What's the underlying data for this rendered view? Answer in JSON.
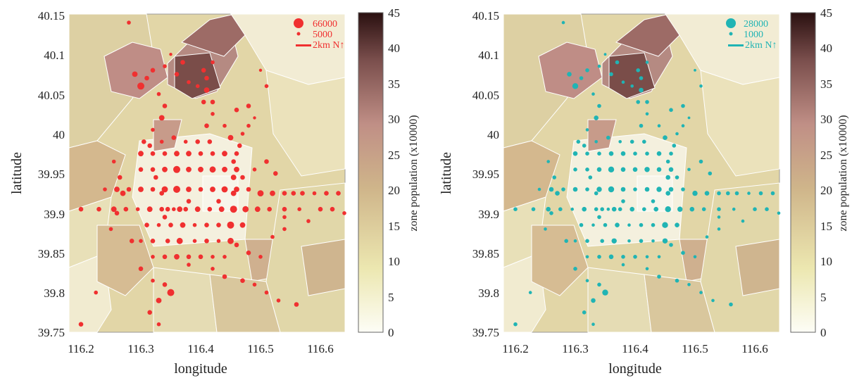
{
  "chart_data": [
    {
      "type": "scatter",
      "xlabel": "longitude",
      "ylabel": "latitude",
      "xlim": [
        116.2,
        116.65
      ],
      "ylim": [
        39.75,
        40.15
      ],
      "x_ticks": [
        "116.2",
        "116.3",
        "116.4",
        "116.5",
        "116.6"
      ],
      "y_ticks": [
        "39.75",
        "39.8",
        "39.85",
        "39.9",
        "39.95",
        "40",
        "40.05",
        "40.1",
        "40.15"
      ],
      "color": "#f03030",
      "legend": {
        "large": "66000",
        "small": "5000",
        "scale": "2km N↑"
      },
      "colorbar": {
        "label": "zone population (x10000)",
        "ticks": [
          "0",
          "5",
          "10",
          "15",
          "20",
          "25",
          "30",
          "35",
          "40",
          "45"
        ]
      }
    },
    {
      "type": "scatter",
      "xlabel": "longitude",
      "ylabel": "latitude",
      "xlim": [
        116.2,
        116.65
      ],
      "ylim": [
        39.75,
        40.15
      ],
      "x_ticks": [
        "116.2",
        "116.3",
        "116.4",
        "116.5",
        "116.6"
      ],
      "y_ticks": [
        "39.75",
        "39.8",
        "39.85",
        "39.9",
        "39.95",
        "40",
        "40.05",
        "40.1",
        "40.15"
      ],
      "color": "#20b4b4",
      "legend": {
        "large": "28000",
        "small": "1000",
        "scale": "2km N↑"
      },
      "colorbar": {
        "label": "zone population (x10000)",
        "ticks": [
          "0",
          "5",
          "10",
          "15",
          "20",
          "25",
          "30",
          "35",
          "40",
          "45"
        ]
      }
    }
  ],
  "points": [
    [
      116.2,
      39.905,
      6
    ],
    [
      116.23,
      39.905,
      6
    ],
    [
      116.255,
      39.905,
      7
    ],
    [
      116.275,
      39.905,
      6
    ],
    [
      116.295,
      39.905,
      5
    ],
    [
      116.315,
      39.905,
      7
    ],
    [
      116.335,
      39.905,
      6
    ],
    [
      116.355,
      39.905,
      5
    ],
    [
      116.375,
      39.905,
      6
    ],
    [
      116.395,
      39.905,
      7
    ],
    [
      116.415,
      39.905,
      6
    ],
    [
      116.435,
      39.905,
      7
    ],
    [
      116.455,
      39.905,
      9
    ],
    [
      116.475,
      39.905,
      8
    ],
    [
      116.495,
      39.905,
      7
    ],
    [
      116.515,
      39.905,
      6
    ],
    [
      116.54,
      39.905,
      6
    ],
    [
      116.565,
      39.905,
      5
    ],
    [
      116.26,
      39.93,
      7
    ],
    [
      116.28,
      39.93,
      6
    ],
    [
      116.3,
      39.93,
      7
    ],
    [
      116.32,
      39.93,
      6
    ],
    [
      116.34,
      39.93,
      8
    ],
    [
      116.36,
      39.93,
      9
    ],
    [
      116.38,
      39.93,
      7
    ],
    [
      116.4,
      39.93,
      6
    ],
    [
      116.42,
      39.93,
      7
    ],
    [
      116.44,
      39.93,
      8
    ],
    [
      116.46,
      39.93,
      7
    ],
    [
      116.48,
      39.93,
      6
    ],
    [
      116.5,
      39.925,
      8
    ],
    [
      116.52,
      39.925,
      7
    ],
    [
      116.54,
      39.925,
      6
    ],
    [
      116.555,
      39.925,
      6
    ],
    [
      116.57,
      39.925,
      6
    ],
    [
      116.59,
      39.925,
      5
    ],
    [
      116.61,
      39.925,
      6
    ],
    [
      116.63,
      39.925,
      6
    ],
    [
      116.3,
      39.975,
      7
    ],
    [
      116.32,
      39.975,
      6
    ],
    [
      116.34,
      39.975,
      6
    ],
    [
      116.36,
      39.975,
      7
    ],
    [
      116.38,
      39.975,
      7
    ],
    [
      116.4,
      39.975,
      6
    ],
    [
      116.42,
      39.975,
      6
    ],
    [
      116.44,
      39.975,
      7
    ],
    [
      116.46,
      39.975,
      6
    ],
    [
      116.3,
      39.955,
      6
    ],
    [
      116.32,
      39.955,
      6
    ],
    [
      116.34,
      39.955,
      7
    ],
    [
      116.36,
      39.955,
      9
    ],
    [
      116.38,
      39.955,
      7
    ],
    [
      116.4,
      39.955,
      7
    ],
    [
      116.42,
      39.955,
      8
    ],
    [
      116.44,
      39.955,
      7
    ],
    [
      116.46,
      39.955,
      7
    ],
    [
      116.31,
      39.885,
      6
    ],
    [
      116.33,
      39.885,
      5
    ],
    [
      116.35,
      39.885,
      6
    ],
    [
      116.37,
      39.885,
      7
    ],
    [
      116.39,
      39.885,
      5
    ],
    [
      116.41,
      39.885,
      6
    ],
    [
      116.43,
      39.885,
      6
    ],
    [
      116.45,
      39.885,
      9
    ],
    [
      116.47,
      39.885,
      7
    ],
    [
      116.3,
      39.865,
      5
    ],
    [
      116.32,
      39.865,
      6
    ],
    [
      116.345,
      39.865,
      6
    ],
    [
      116.365,
      39.865,
      8
    ],
    [
      116.39,
      39.865,
      5
    ],
    [
      116.41,
      39.865,
      6
    ],
    [
      116.43,
      39.865,
      5
    ],
    [
      116.45,
      39.865,
      8
    ],
    [
      116.32,
      39.845,
      5
    ],
    [
      116.34,
      39.845,
      6
    ],
    [
      116.36,
      39.845,
      7
    ],
    [
      116.38,
      39.845,
      6
    ],
    [
      116.4,
      39.845,
      6
    ],
    [
      116.42,
      39.845,
      5
    ],
    [
      116.44,
      39.845,
      5
    ],
    [
      116.305,
      39.99,
      6
    ],
    [
      116.32,
      40.005,
      5
    ],
    [
      116.335,
      40.02,
      7
    ],
    [
      116.34,
      40.035,
      6
    ],
    [
      116.33,
      40.05,
      5
    ],
    [
      116.3,
      40.06,
      9
    ],
    [
      116.29,
      40.075,
      7
    ],
    [
      116.31,
      40.07,
      6
    ],
    [
      116.32,
      40.08,
      6
    ],
    [
      116.34,
      40.085,
      5
    ],
    [
      116.36,
      40.075,
      6
    ],
    [
      116.37,
      40.09,
      6
    ],
    [
      116.38,
      40.065,
      5
    ],
    [
      116.395,
      40.06,
      5
    ],
    [
      116.405,
      40.08,
      6
    ],
    [
      116.41,
      40.07,
      6
    ],
    [
      116.41,
      40.055,
      7
    ],
    [
      116.405,
      40.04,
      6
    ],
    [
      116.42,
      40.04,
      6
    ],
    [
      116.42,
      40.025,
      5
    ],
    [
      116.41,
      40.01,
      6
    ],
    [
      116.44,
      40.01,
      5
    ],
    [
      116.45,
      39.995,
      7
    ],
    [
      116.465,
      39.985,
      6
    ],
    [
      116.47,
      40.0,
      5
    ],
    [
      116.48,
      40.01,
      5
    ],
    [
      116.46,
      40.03,
      6
    ],
    [
      116.48,
      40.035,
      6
    ],
    [
      116.28,
      40.14,
      5
    ],
    [
      116.255,
      39.965,
      5
    ],
    [
      116.265,
      39.945,
      6
    ],
    [
      116.27,
      39.925,
      7
    ],
    [
      116.26,
      39.9,
      6
    ],
    [
      116.3,
      39.83,
      6
    ],
    [
      116.32,
      39.815,
      5
    ],
    [
      116.34,
      39.81,
      6
    ],
    [
      116.33,
      39.79,
      7
    ],
    [
      116.315,
      39.775,
      6
    ],
    [
      116.33,
      39.76,
      5
    ],
    [
      116.35,
      39.8,
      9
    ],
    [
      116.38,
      39.835,
      5
    ],
    [
      116.42,
      39.83,
      5
    ],
    [
      116.44,
      39.82,
      6
    ],
    [
      116.47,
      39.815,
      6
    ],
    [
      116.49,
      39.81,
      5
    ],
    [
      116.51,
      39.8,
      5
    ],
    [
      116.53,
      39.79,
      5
    ],
    [
      116.56,
      39.785,
      6
    ],
    [
      116.2,
      39.76,
      6
    ],
    [
      116.225,
      39.8,
      5
    ],
    [
      116.46,
      39.86,
      6
    ],
    [
      116.48,
      39.85,
      6
    ],
    [
      116.5,
      39.845,
      5
    ],
    [
      116.52,
      39.87,
      5
    ],
    [
      116.54,
      39.88,
      5
    ],
    [
      116.6,
      39.905,
      6
    ],
    [
      116.62,
      39.905,
      6
    ],
    [
      116.64,
      39.9,
      5
    ],
    [
      116.5,
      40.08,
      4
    ],
    [
      116.51,
      40.06,
      5
    ],
    [
      116.49,
      40.02,
      4
    ],
    [
      116.42,
      40.09,
      5
    ],
    [
      116.35,
      40.1,
      4
    ],
    [
      116.24,
      39.93,
      5
    ],
    [
      116.25,
      39.88,
      5
    ],
    [
      116.285,
      39.865,
      6
    ],
    [
      116.34,
      39.895,
      6
    ],
    [
      116.38,
      39.915,
      6
    ],
    [
      116.43,
      39.915,
      6
    ],
    [
      116.47,
      39.945,
      6
    ],
    [
      116.49,
      39.955,
      5
    ],
    [
      116.51,
      39.965,
      6
    ],
    [
      116.525,
      39.95,
      6
    ],
    [
      116.54,
      39.895,
      5
    ],
    [
      116.58,
      39.89,
      5
    ],
    [
      116.415,
      39.99,
      6
    ],
    [
      116.395,
      39.99,
      6
    ],
    [
      116.375,
      39.99,
      5
    ],
    [
      116.355,
      39.995,
      6
    ],
    [
      116.335,
      39.99,
      5
    ],
    [
      116.315,
      39.985,
      6
    ],
    [
      116.455,
      39.925,
      7
    ],
    [
      116.455,
      39.945,
      7
    ],
    [
      116.455,
      39.965,
      6
    ],
    [
      116.365,
      39.905,
      7
    ],
    [
      116.345,
      39.905,
      6
    ],
    [
      116.335,
      39.925,
      6
    ],
    [
      116.325,
      39.945,
      6
    ]
  ]
}
